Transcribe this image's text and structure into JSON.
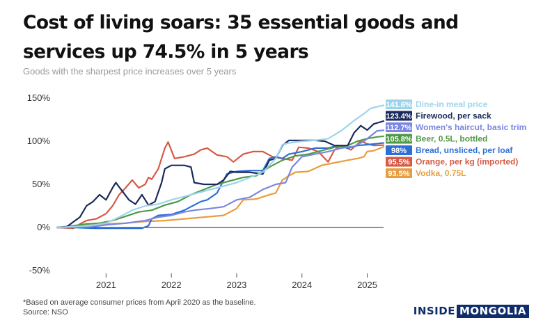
{
  "header": {
    "title": "Cost of living soars: 35 essential goods and services up 74.5% in 5 years",
    "subtitle": "Goods with the sharpest price increases over 5 years"
  },
  "footnote": {
    "line1": "*Based on average consumer prices from April 2020 as the baseline.",
    "line2": "Source: NSO"
  },
  "brand": {
    "part1": "INSIDE",
    "part2": "MONGOLIA"
  },
  "chart_data": {
    "type": "line",
    "title": "Cost of living soars: 35 essential goods and services up 74.5% in 5 years",
    "subtitle": "Goods with the sharpest price increases over 5 years",
    "xlabel": "",
    "ylabel": "",
    "x_unit": "year",
    "xlim": [
      2020.25,
      2025.25
    ],
    "ylim": [
      -50,
      150
    ],
    "x_ticks": [
      {
        "value": 2021,
        "label": "2021"
      },
      {
        "value": 2022,
        "label": "2022"
      },
      {
        "value": 2023,
        "label": "2023"
      },
      {
        "value": 2024,
        "label": "2024"
      },
      {
        "value": 2025,
        "label": "2025"
      }
    ],
    "y_ticks": [
      {
        "value": 150,
        "label": "150%"
      },
      {
        "value": 100,
        "label": "100%"
      },
      {
        "value": 50,
        "label": "50%"
      },
      {
        "value": 0,
        "label": "0%"
      },
      {
        "value": -50,
        "label": "-50%"
      }
    ],
    "grid": false,
    "zero_line": true,
    "legend": "right, direct labels at line ends",
    "series": [
      {
        "name": "Dine-in meal price",
        "end_label": "141.6%",
        "color": "#9dd4ec",
        "points": [
          [
            2020.25,
            0
          ],
          [
            2020.5,
            1
          ],
          [
            2020.75,
            2
          ],
          [
            2021.0,
            5
          ],
          [
            2021.2,
            12
          ],
          [
            2021.4,
            20
          ],
          [
            2021.6,
            25
          ],
          [
            2021.8,
            27
          ],
          [
            2022.0,
            32
          ],
          [
            2022.2,
            36
          ],
          [
            2022.4,
            40
          ],
          [
            2022.6,
            44
          ],
          [
            2022.8,
            48
          ],
          [
            2023.0,
            52
          ],
          [
            2023.2,
            58
          ],
          [
            2023.4,
            64
          ],
          [
            2023.6,
            80
          ],
          [
            2023.7,
            96
          ],
          [
            2023.8,
            98
          ],
          [
            2024.0,
            100
          ],
          [
            2024.2,
            101
          ],
          [
            2024.4,
            103
          ],
          [
            2024.6,
            112
          ],
          [
            2024.8,
            124
          ],
          [
            2024.95,
            132
          ],
          [
            2025.05,
            138
          ],
          [
            2025.15,
            140
          ],
          [
            2025.25,
            141.6
          ]
        ]
      },
      {
        "name": "Firewood, per sack",
        "end_label": "123.4%",
        "color": "#1b2a5c",
        "points": [
          [
            2020.25,
            0
          ],
          [
            2020.4,
            1
          ],
          [
            2020.6,
            12
          ],
          [
            2020.7,
            25
          ],
          [
            2020.8,
            30
          ],
          [
            2020.9,
            38
          ],
          [
            2021.0,
            32
          ],
          [
            2021.1,
            46
          ],
          [
            2021.15,
            52
          ],
          [
            2021.25,
            42
          ],
          [
            2021.35,
            32
          ],
          [
            2021.45,
            27
          ],
          [
            2021.55,
            38
          ],
          [
            2021.65,
            26
          ],
          [
            2021.75,
            30
          ],
          [
            2021.85,
            52
          ],
          [
            2021.9,
            68
          ],
          [
            2022.0,
            72
          ],
          [
            2022.2,
            72
          ],
          [
            2022.3,
            70
          ],
          [
            2022.35,
            52
          ],
          [
            2022.5,
            50
          ],
          [
            2022.7,
            50
          ],
          [
            2022.8,
            55
          ],
          [
            2022.9,
            65
          ],
          [
            2023.0,
            64
          ],
          [
            2023.2,
            64
          ],
          [
            2023.4,
            62
          ],
          [
            2023.5,
            78
          ],
          [
            2023.6,
            80
          ],
          [
            2023.7,
            95
          ],
          [
            2023.8,
            101
          ],
          [
            2024.0,
            101
          ],
          [
            2024.2,
            101
          ],
          [
            2024.35,
            100
          ],
          [
            2024.5,
            95
          ],
          [
            2024.7,
            95
          ],
          [
            2024.8,
            110
          ],
          [
            2024.9,
            118
          ],
          [
            2025.0,
            113
          ],
          [
            2025.1,
            120
          ],
          [
            2025.25,
            123.4
          ]
        ]
      },
      {
        "name": "Women's haircut, basic trim",
        "end_label": "112.7%",
        "color": "#7b86e0",
        "points": [
          [
            2020.25,
            0
          ],
          [
            2020.8,
            1
          ],
          [
            2021.0,
            3
          ],
          [
            2021.3,
            5
          ],
          [
            2021.6,
            8
          ],
          [
            2021.8,
            12
          ],
          [
            2022.0,
            14
          ],
          [
            2022.2,
            18
          ],
          [
            2022.35,
            20
          ],
          [
            2022.6,
            22
          ],
          [
            2022.8,
            24
          ],
          [
            2023.0,
            32
          ],
          [
            2023.2,
            35
          ],
          [
            2023.4,
            44
          ],
          [
            2023.6,
            50
          ],
          [
            2023.75,
            52
          ],
          [
            2023.85,
            70
          ],
          [
            2024.0,
            82
          ],
          [
            2024.2,
            85
          ],
          [
            2024.4,
            88
          ],
          [
            2024.6,
            92
          ],
          [
            2024.8,
            94
          ],
          [
            2024.95,
            100
          ],
          [
            2025.05,
            106
          ],
          [
            2025.15,
            112
          ],
          [
            2025.25,
            112.7
          ]
        ]
      },
      {
        "name": "Beer, 0.5L, bottled",
        "end_label": "105.8%",
        "color": "#4f9a47",
        "points": [
          [
            2020.25,
            0
          ],
          [
            2020.5,
            2
          ],
          [
            2020.7,
            4
          ],
          [
            2020.9,
            5
          ],
          [
            2021.1,
            8
          ],
          [
            2021.3,
            13
          ],
          [
            2021.5,
            18
          ],
          [
            2021.7,
            20
          ],
          [
            2021.9,
            26
          ],
          [
            2022.1,
            30
          ],
          [
            2022.3,
            38
          ],
          [
            2022.5,
            44
          ],
          [
            2022.7,
            50
          ],
          [
            2022.9,
            54
          ],
          [
            2023.1,
            58
          ],
          [
            2023.3,
            60
          ],
          [
            2023.5,
            70
          ],
          [
            2023.7,
            78
          ],
          [
            2023.9,
            83
          ],
          [
            2024.1,
            85
          ],
          [
            2024.3,
            89
          ],
          [
            2024.5,
            93
          ],
          [
            2024.7,
            95
          ],
          [
            2024.85,
            100
          ],
          [
            2025.0,
            103
          ],
          [
            2025.15,
            105
          ],
          [
            2025.25,
            105.8
          ]
        ]
      },
      {
        "name": "Bread, unsliced, per loaf",
        "end_label": "98%",
        "color": "#2e6fd6",
        "points": [
          [
            2020.25,
            0
          ],
          [
            2020.5,
            0
          ],
          [
            2020.8,
            -1
          ],
          [
            2021.0,
            -1
          ],
          [
            2021.3,
            -1
          ],
          [
            2021.55,
            -1
          ],
          [
            2021.65,
            2
          ],
          [
            2021.7,
            10
          ],
          [
            2021.8,
            14
          ],
          [
            2022.0,
            15
          ],
          [
            2022.2,
            20
          ],
          [
            2022.3,
            24
          ],
          [
            2022.45,
            30
          ],
          [
            2022.55,
            32
          ],
          [
            2022.7,
            40
          ],
          [
            2022.85,
            62
          ],
          [
            2023.0,
            65
          ],
          [
            2023.2,
            66
          ],
          [
            2023.4,
            66
          ],
          [
            2023.5,
            80
          ],
          [
            2023.6,
            82
          ],
          [
            2023.7,
            80
          ],
          [
            2023.8,
            85
          ],
          [
            2024.0,
            88
          ],
          [
            2024.2,
            92
          ],
          [
            2024.4,
            92
          ],
          [
            2024.55,
            95
          ],
          [
            2024.7,
            92
          ],
          [
            2024.85,
            95
          ],
          [
            2025.0,
            96
          ],
          [
            2025.25,
            98
          ]
        ]
      },
      {
        "name": "Orange, per kg (imported)",
        "end_label": "95.5%",
        "color": "#d65a45",
        "points": [
          [
            2020.25,
            0
          ],
          [
            2020.5,
            -1
          ],
          [
            2020.6,
            4
          ],
          [
            2020.7,
            8
          ],
          [
            2020.85,
            10
          ],
          [
            2021.0,
            16
          ],
          [
            2021.1,
            25
          ],
          [
            2021.2,
            38
          ],
          [
            2021.3,
            46
          ],
          [
            2021.4,
            55
          ],
          [
            2021.5,
            46
          ],
          [
            2021.6,
            50
          ],
          [
            2021.65,
            58
          ],
          [
            2021.7,
            56
          ],
          [
            2021.8,
            68
          ],
          [
            2021.9,
            92
          ],
          [
            2021.95,
            99
          ],
          [
            2022.05,
            80
          ],
          [
            2022.2,
            82
          ],
          [
            2022.35,
            85
          ],
          [
            2022.45,
            90
          ],
          [
            2022.55,
            92
          ],
          [
            2022.7,
            84
          ],
          [
            2022.85,
            82
          ],
          [
            2022.95,
            76
          ],
          [
            2023.1,
            85
          ],
          [
            2023.25,
            88
          ],
          [
            2023.4,
            88
          ],
          [
            2023.55,
            82
          ],
          [
            2023.7,
            80
          ],
          [
            2023.85,
            78
          ],
          [
            2023.95,
            93
          ],
          [
            2024.1,
            92
          ],
          [
            2024.25,
            88
          ],
          [
            2024.4,
            76
          ],
          [
            2024.5,
            90
          ],
          [
            2024.6,
            95
          ],
          [
            2024.75,
            90
          ],
          [
            2024.9,
            100
          ],
          [
            2025.0,
            97
          ],
          [
            2025.1,
            95
          ],
          [
            2025.25,
            95.5
          ]
        ]
      },
      {
        "name": "Vodka, 0.75L",
        "end_label": "93.5%",
        "color": "#e89d3e",
        "points": [
          [
            2020.25,
            0
          ],
          [
            2020.7,
            2
          ],
          [
            2021.0,
            4
          ],
          [
            2021.3,
            5
          ],
          [
            2021.6,
            7
          ],
          [
            2021.9,
            8
          ],
          [
            2022.2,
            10
          ],
          [
            2022.5,
            12
          ],
          [
            2022.8,
            14
          ],
          [
            2023.0,
            22
          ],
          [
            2023.1,
            32
          ],
          [
            2023.3,
            33
          ],
          [
            2023.5,
            38
          ],
          [
            2023.6,
            40
          ],
          [
            2023.7,
            55
          ],
          [
            2023.8,
            60
          ],
          [
            2023.9,
            64
          ],
          [
            2024.1,
            65
          ],
          [
            2024.3,
            72
          ],
          [
            2024.5,
            75
          ],
          [
            2024.7,
            78
          ],
          [
            2024.85,
            80
          ],
          [
            2024.95,
            82
          ],
          [
            2025.0,
            88
          ],
          [
            2025.1,
            89
          ],
          [
            2025.25,
            93.5
          ]
        ]
      }
    ]
  }
}
